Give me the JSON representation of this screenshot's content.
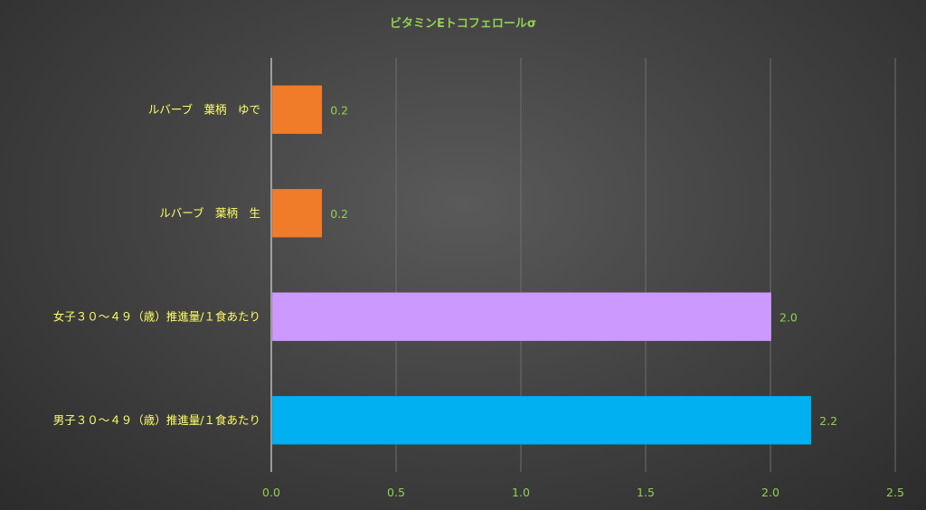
{
  "chart_data": {
    "type": "bar",
    "orientation": "horizontal",
    "title": "ビタミンEトコフェロールσ",
    "categories": [
      "ルバーブ　葉柄　ゆで",
      "ルバーブ　葉柄　生",
      "女子３０～４９（歳）推進量/１食あたり",
      "男子３０～４９（歳）推進量/１食あたり"
    ],
    "values": [
      0.2,
      0.2,
      2.0,
      2.16
    ],
    "value_labels": [
      "0.2",
      "0.2",
      "2.0",
      "2.2"
    ],
    "bar_colors": [
      "#f07c2a",
      "#f07c2a",
      "#cc99ff",
      "#00b0f0"
    ],
    "xlim": [
      0,
      2.5
    ],
    "xticks": [
      0.0,
      0.5,
      1.0,
      1.5,
      2.0,
      2.5
    ],
    "xtick_labels": [
      "0.0",
      "0.5",
      "1.0",
      "1.5",
      "2.0",
      "2.5"
    ],
    "grid": "vertical",
    "legend": "none",
    "colors": {
      "title": "#92d050",
      "category_text": "#ffff66",
      "value_text": "#92d050",
      "tick_text": "#92d050",
      "gridline": "#6e6e6e",
      "axis": "#d9d9d9"
    }
  }
}
